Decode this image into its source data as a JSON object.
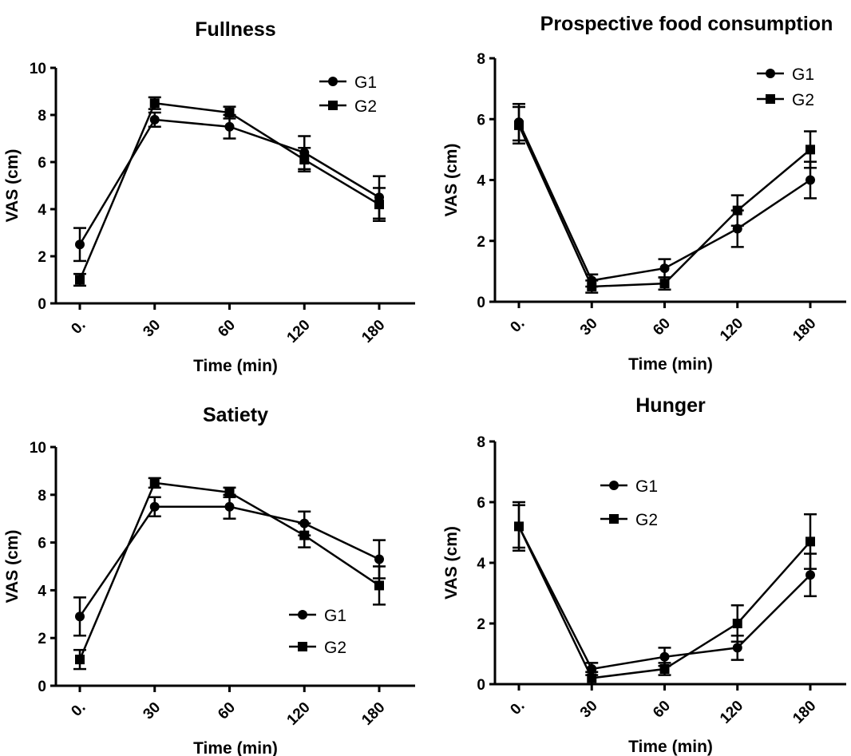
{
  "chart_data": [
    {
      "type": "line",
      "title": "Fullness",
      "xlabel": "Time (min)",
      "ylabel": "VAS (cm)",
      "categories": [
        "0.",
        "30",
        "60",
        "120",
        "180"
      ],
      "ylim": [
        0,
        10
      ],
      "yticks": [
        "0",
        "2",
        "4",
        "6",
        "8",
        "10"
      ],
      "legend_position": "top-right",
      "series": [
        {
          "name": "G1",
          "marker": "circle",
          "values": [
            2.5,
            7.8,
            7.5,
            6.4,
            4.5
          ],
          "errors": [
            0.7,
            0.3,
            0.5,
            0.7,
            0.9
          ]
        },
        {
          "name": "G2",
          "marker": "square",
          "values": [
            1.0,
            8.5,
            8.1,
            6.1,
            4.2
          ],
          "errors": [
            0.25,
            0.25,
            0.25,
            0.5,
            0.7
          ]
        }
      ]
    },
    {
      "type": "line",
      "title": "Prospective food consumption",
      "xlabel": "Time (min)",
      "ylabel": "VAS (cm)",
      "categories": [
        "0.",
        "30",
        "60",
        "120",
        "180"
      ],
      "ylim": [
        0,
        8
      ],
      "yticks": [
        "0",
        "2",
        "4",
        "6",
        "8"
      ],
      "legend_position": "top-right",
      "series": [
        {
          "name": "G1",
          "marker": "circle",
          "values": [
            5.9,
            0.7,
            1.1,
            2.4,
            4.0
          ],
          "errors": [
            0.6,
            0.2,
            0.3,
            0.6,
            0.6
          ]
        },
        {
          "name": "G2",
          "marker": "square",
          "values": [
            5.8,
            0.5,
            0.6,
            3.0,
            5.0
          ],
          "errors": [
            0.6,
            0.2,
            0.2,
            0.5,
            0.6
          ]
        }
      ]
    },
    {
      "type": "line",
      "title": "Satiety",
      "xlabel": "Time (min)",
      "ylabel": "VAS (cm)",
      "categories": [
        "0.",
        "30",
        "60",
        "120",
        "180"
      ],
      "ylim": [
        0,
        10
      ],
      "yticks": [
        "0",
        "2",
        "4",
        "6",
        "8",
        "10"
      ],
      "legend_position": "bottom-right",
      "series": [
        {
          "name": "G1",
          "marker": "circle",
          "values": [
            2.9,
            7.5,
            7.5,
            6.8,
            5.3
          ],
          "errors": [
            0.8,
            0.4,
            0.5,
            0.5,
            0.8
          ]
        },
        {
          "name": "G2",
          "marker": "square",
          "values": [
            1.1,
            8.5,
            8.1,
            6.3,
            4.2
          ],
          "errors": [
            0.4,
            0.2,
            0.2,
            0.5,
            0.8
          ]
        }
      ]
    },
    {
      "type": "line",
      "title": "Hunger",
      "xlabel": "Time (min)",
      "ylabel": "VAS (cm)",
      "categories": [
        "0.",
        "30",
        "60",
        "120",
        "180"
      ],
      "ylim": [
        0,
        8
      ],
      "yticks": [
        "0",
        "2",
        "4",
        "6",
        "8"
      ],
      "legend_position": "top-left",
      "series": [
        {
          "name": "G1",
          "marker": "circle",
          "values": [
            5.2,
            0.5,
            0.9,
            1.2,
            3.6
          ],
          "errors": [
            0.7,
            0.2,
            0.3,
            0.4,
            0.7
          ]
        },
        {
          "name": "G2",
          "marker": "square",
          "values": [
            5.2,
            0.2,
            0.5,
            2.0,
            4.7
          ],
          "errors": [
            0.8,
            0.2,
            0.2,
            0.6,
            0.9
          ]
        }
      ]
    }
  ]
}
